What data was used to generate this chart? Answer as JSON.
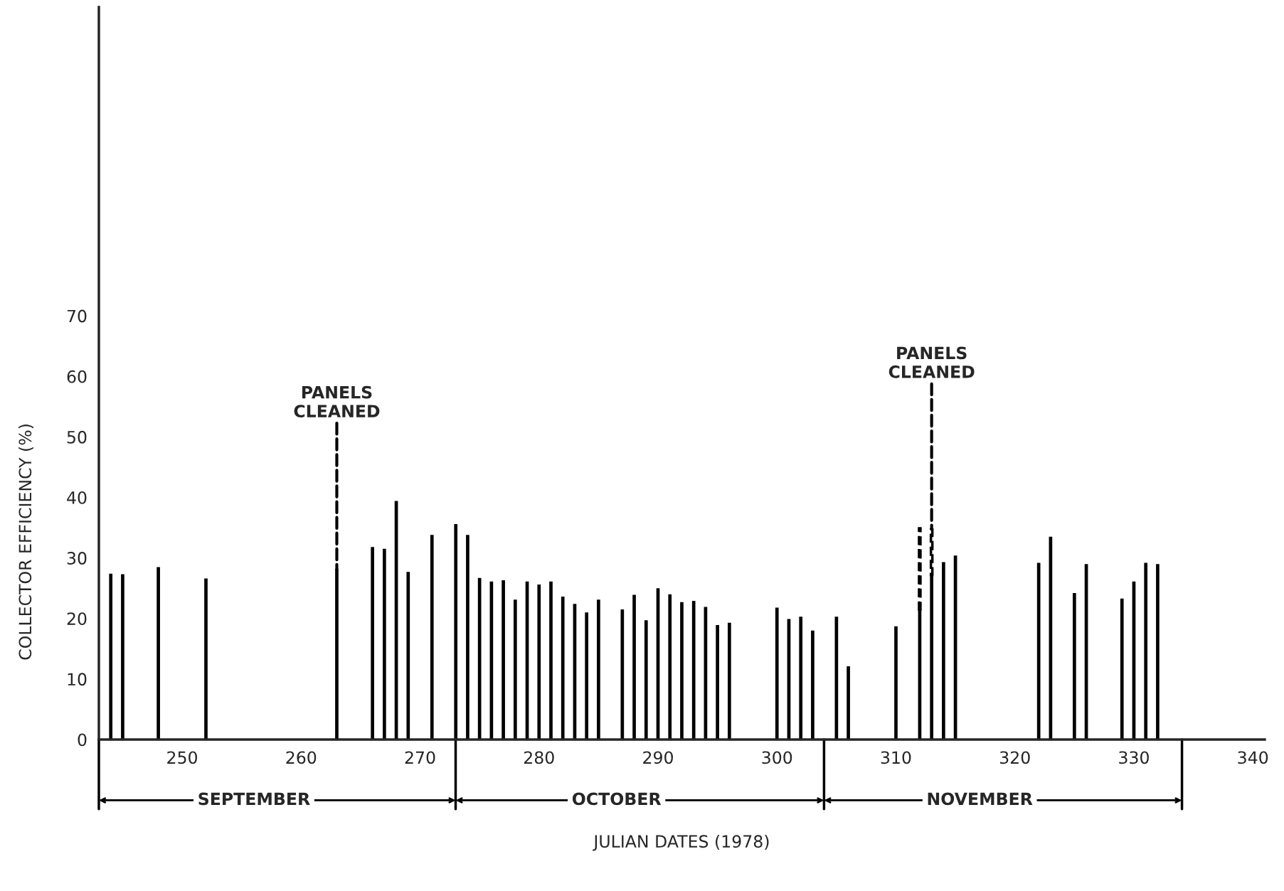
{
  "chart_data": {
    "type": "bar",
    "xlabel": "JULIAN DATES (1978)",
    "ylabel": "COLLECTOR EFFICIENCY (%)",
    "xlim": [
      243,
      341
    ],
    "xticks": [
      250,
      260,
      270,
      280,
      290,
      300,
      310,
      320,
      330,
      340
    ],
    "ylim": [
      0,
      121
    ],
    "yticks": [
      0,
      10,
      20,
      30,
      40,
      50,
      60,
      70
    ],
    "grid": false,
    "legend": false,
    "series": [
      {
        "color": "#000000",
        "line_style": "solid",
        "x": [
          244,
          245,
          248,
          252,
          263,
          266,
          267,
          268,
          269,
          271,
          273,
          274,
          275,
          276,
          277,
          278,
          279,
          280,
          281,
          282,
          283,
          284,
          285,
          287,
          288,
          289,
          290,
          291,
          292,
          293,
          294,
          295,
          296,
          300,
          301,
          302,
          303,
          305,
          306,
          310,
          312,
          313,
          314,
          315,
          322,
          323,
          325,
          326,
          329,
          330,
          331,
          332
        ],
        "values": [
          27.4,
          27.3,
          28.5,
          26.6,
          28.2,
          31.8,
          31.5,
          39.4,
          27.7,
          33.8,
          35.6,
          33.8,
          26.7,
          26.1,
          26.3,
          23.1,
          26.1,
          25.6,
          26.1,
          23.6,
          22.4,
          21.0,
          23.1,
          21.5,
          23.9,
          19.7,
          25.0,
          24.0,
          22.7,
          22.9,
          21.9,
          18.9,
          19.3,
          21.8,
          19.9,
          20.3,
          18.0,
          20.3,
          12.1,
          18.7,
          21.5,
          27.2,
          29.3,
          30.4,
          29.2,
          33.5,
          24.2,
          29.0,
          23.3,
          26.1,
          29.2,
          29.0
        ]
      },
      {
        "color": "#000000",
        "line_style": "dashed",
        "x": [
          312,
          313
        ],
        "base": [
          21.5,
          27.2
        ],
        "values": [
          13.4,
          7.5
        ]
      }
    ],
    "annotations": [
      {
        "text": "PANELS\nCLEANED",
        "x": 263,
        "y": 28.2
      },
      {
        "text": "PANELS\nCLEANED",
        "x": 313,
        "y": 34.7
      },
      "SEPTEMBER",
      "OCTOBER",
      "NOVEMBER"
    ]
  }
}
